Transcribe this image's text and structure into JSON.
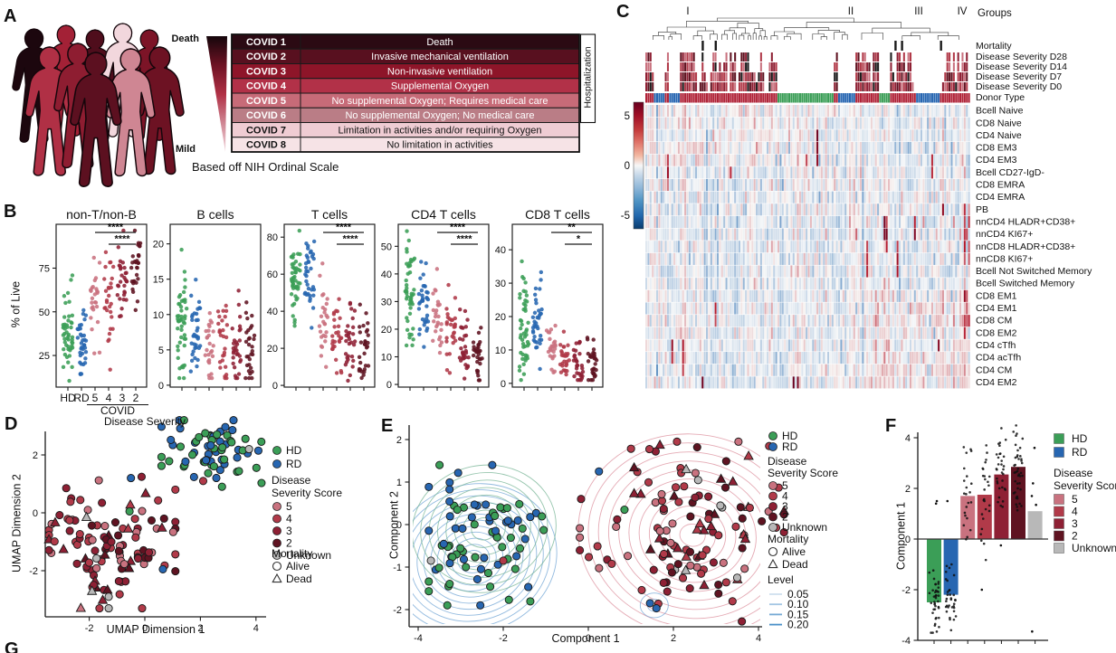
{
  "panels": {
    "A": "A",
    "B": "B",
    "C": "C",
    "D": "D",
    "E": "E",
    "F": "F",
    "G": "G"
  },
  "colors": {
    "hd": "#3b9e57",
    "rd": "#2766b1",
    "s5": "#c9727f",
    "s4": "#b13a49",
    "s3": "#8e2034",
    "s2": "#5f1321",
    "unknown": "#b8b8b8",
    "donor_covid": "#b02338",
    "black": "#1a1a1a",
    "heat_pos": "#b2182b",
    "heat_pos_dark": "#67001f",
    "heat_neg": "#2166ac",
    "heat_neg_dark": "#053061"
  },
  "panelA": {
    "death": "Death",
    "mild": "Mild",
    "hospitalization": "Hospitalization",
    "caption": "Based off NIH Ordinal Scale",
    "rows": [
      {
        "code": "COVID 1",
        "desc": "Death",
        "bg": "#2b0a13",
        "text": "#ffffff"
      },
      {
        "code": "COVID 2",
        "desc": "Invasive mechanical ventilation",
        "bg": "#58101f",
        "text": "#ffffff"
      },
      {
        "code": "COVID 3",
        "desc": "Non-invasive ventilation",
        "bg": "#8e1529",
        "text": "#ffffff"
      },
      {
        "code": "COVID 4",
        "desc": "Supplemental Oxygen",
        "bg": "#b23148",
        "text": "#ffffff"
      },
      {
        "code": "COVID 5",
        "desc": "No supplemental Oxygen; Requires medical care",
        "bg": "#c76b78",
        "text": "#ffffff"
      },
      {
        "code": "COVID 6",
        "desc": "No supplemental Oxygen; No medical care",
        "bg": "#ba7d86",
        "text": "#ffffff"
      },
      {
        "code": "COVID 7",
        "desc": "Limitation in activities and/or requiring Oxygen",
        "bg": "#efccd3",
        "text": "#111111"
      },
      {
        "code": "COVID 8",
        "desc": "No limitation in activities",
        "bg": "#f6e3e6",
        "text": "#111111"
      }
    ],
    "silhouette_colors": [
      "#1c070e",
      "#a32136",
      "#4f0d1c",
      "#f2d7dd",
      "#7c1427",
      "#6d1223",
      "#b03045",
      "#8e1d31",
      "#cf8693",
      "#5c1020"
    ],
    "wedge_gradient": [
      "#15060b",
      "#6d1223",
      "#b03045",
      "#cf8693",
      "#f2d7dd"
    ]
  },
  "legend": {
    "hd": "HD",
    "rd": "RD",
    "disease": "Disease",
    "severity_score": "Severity Score",
    "severity_items": [
      [
        "s5",
        "5"
      ],
      [
        "s4",
        "4"
      ],
      [
        "s3",
        "3"
      ],
      [
        "s2",
        "2"
      ],
      [
        "unknown",
        "Unknown"
      ]
    ],
    "mortality": "Mortality",
    "alive": "Alive",
    "dead": "Dead",
    "level": "Level",
    "levels": [
      "0.05",
      "0.10",
      "0.15",
      "0.20"
    ],
    "level_colors": [
      "#cfe0ef",
      "#a3c6e3",
      "#74a9d4",
      "#4a90c9"
    ]
  },
  "chart_data": {
    "B": {
      "type": "scatter-strip",
      "ylabel": "% of Live",
      "xlabel": "Disease Severity",
      "xgroup_label": "COVID",
      "categories": [
        "HD",
        "RD",
        "5",
        "4",
        "3",
        "2"
      ],
      "group_colors": [
        "hd",
        "rd",
        "s5",
        "s4",
        "s3",
        "s2"
      ],
      "plots": [
        {
          "title": "non-T/non-B",
          "yticks": [
            25,
            50,
            75
          ],
          "ydomain": [
            10,
            97
          ],
          "centers": [
            35,
            33,
            56,
            61,
            70,
            77
          ],
          "spreads": [
            13,
            12,
            13,
            14,
            12,
            10
          ],
          "counts": [
            48,
            36,
            26,
            28,
            30,
            30
          ],
          "sig": [
            {
              "i1": 2,
              "i2": 5,
              "stars": "****"
            },
            {
              "i1": 3,
              "i2": 5,
              "stars": "****"
            }
          ]
        },
        {
          "title": "B cells",
          "yticks": [
            0,
            5,
            10,
            15,
            20
          ],
          "ydomain": [
            0.5,
            22
          ],
          "centers": [
            7.6,
            7.2,
            5.2,
            8.0,
            5.0,
            5.2
          ],
          "spreads": [
            3.6,
            3.0,
            3.4,
            4.2,
            3.2,
            3.4
          ],
          "counts": [
            48,
            36,
            26,
            28,
            30,
            30
          ],
          "sig": []
        },
        {
          "title": "T cells",
          "yticks": [
            0,
            20,
            40,
            60,
            80
          ],
          "ydomain": [
            2,
            84
          ],
          "centers": [
            57,
            60,
            36,
            30,
            23,
            19
          ],
          "spreads": [
            11,
            11,
            13,
            12,
            10,
            9
          ],
          "counts": [
            48,
            36,
            26,
            28,
            30,
            30
          ],
          "sig": [
            {
              "i1": 2,
              "i2": 5,
              "stars": "****"
            },
            {
              "i1": 3,
              "i2": 5,
              "stars": "****"
            }
          ]
        },
        {
          "title": "CD4 T cells",
          "yticks": [
            0,
            10,
            20,
            30,
            40,
            50
          ],
          "ydomain": [
            1,
            56
          ],
          "centers": [
            33,
            32,
            24,
            18,
            12,
            10
          ],
          "spreads": [
            8,
            7.5,
            8,
            7,
            6,
            5.5
          ],
          "counts": [
            48,
            36,
            26,
            28,
            30,
            30
          ],
          "sig": [
            {
              "i1": 2,
              "i2": 5,
              "stars": "****"
            },
            {
              "i1": 3,
              "i2": 5,
              "stars": "****"
            }
          ]
        },
        {
          "title": "CD8 T cells",
          "yticks": [
            0,
            10,
            20,
            30,
            40
          ],
          "ydomain": [
            0.5,
            46
          ],
          "centers": [
            19,
            19,
            10.5,
            7.5,
            6.5,
            5.5
          ],
          "spreads": [
            7.5,
            7,
            5,
            4,
            3.5,
            3.5
          ],
          "counts": [
            48,
            36,
            26,
            28,
            30,
            30
          ],
          "sig": [
            {
              "i1": 2,
              "i2": 5,
              "stars": "**"
            },
            {
              "i1": 3,
              "i2": 5,
              "stars": "*"
            }
          ]
        }
      ]
    },
    "C": {
      "type": "heatmap",
      "groups_label": "Groups",
      "groups": [
        "I",
        "II",
        "III",
        "IV"
      ],
      "annotation_rows": [
        "Mortality",
        "Disease Severity D28",
        "Disease Severity D14",
        "Disease Severity D7",
        "Disease Severity D0",
        "Donor Type"
      ],
      "rows": [
        "Bcell Naive",
        "CD8 Naive",
        "CD4 Naive",
        "CD8 EM3",
        "CD4 EM3",
        "Bcell CD27-IgD-",
        "CD8 EMRA",
        "CD4 EMRA",
        "PB",
        "nnCD4 HLADR+CD38+",
        "nnCD4 KI67+",
        "nnCD8 HLADR+CD38+",
        "nnCD8 KI67+",
        "Bcell Not Switched Memory",
        "Bcell Switched Memory",
        "CD8 EM1",
        "CD4 EM1",
        "CD8 CM",
        "CD8 EM2",
        "CD4 cTfh",
        "CD4 acTfh",
        "CD4 CM",
        "CD4 EM2"
      ],
      "colorbar_ticks": [
        5,
        0,
        -5
      ],
      "value_domain": [
        -6.5,
        6.5
      ],
      "n_columns": 150
    },
    "D": {
      "type": "scatter",
      "xlabel": "UMAP Dimension 1",
      "ylabel": "UMAP Dimension 2",
      "xticks": [
        -2,
        0,
        2,
        4
      ],
      "yticks": [
        2,
        0,
        -2
      ],
      "clusters": [
        {
          "name": "healthy",
          "n": 66,
          "cx": 2.25,
          "cy": 2.05,
          "sx": 0.95,
          "sy": 0.6,
          "xclamp": [
            0.6,
            4.2
          ],
          "yclamp": [
            0.9,
            3.2
          ],
          "colors": {
            "hd": 0.58,
            "rd": 0.42
          },
          "tri_prob": 0
        },
        {
          "name": "covid",
          "n": 112,
          "cx": -1.15,
          "cy": -1.1,
          "sx": 1.15,
          "sy": 1.05,
          "xclamp": [
            -3.45,
            1.1
          ],
          "yclamp": [
            -3.3,
            1.3
          ],
          "colors": {
            "s5": 0.22,
            "s4": 0.3,
            "s3": 0.26,
            "s2": 0.18,
            "unknown": 0.04
          },
          "tri_prob": 0.2
        }
      ],
      "extras": [
        {
          "x": -0.55,
          "y": 0.05,
          "c": "hd"
        },
        {
          "x": 3.75,
          "y": 2.2,
          "c": "unknown"
        },
        {
          "x": 2.1,
          "y": 1.1,
          "c": "s4"
        },
        {
          "x": 0.65,
          "y": -1.95,
          "c": "rd"
        },
        {
          "x": -0.5,
          "y": 1.2,
          "c": "rd"
        },
        {
          "x": -1.3,
          "y": -2.9,
          "c": "unknown"
        },
        {
          "x": -2.1,
          "y": -0.15,
          "c": "unknown",
          "tri": true
        }
      ]
    },
    "E": {
      "type": "scatter-contour",
      "xlabel": "Component 1",
      "ylabel": "Component 2",
      "xticks": [
        -4,
        -2,
        0,
        2,
        4
      ],
      "yticks": [
        2,
        1,
        0,
        -1,
        -2
      ],
      "contour_levels": [
        0.05,
        0.1,
        0.15,
        0.2
      ],
      "clusters": [
        {
          "name": "healthy",
          "n": 78,
          "cx": -2.55,
          "cy": -0.35,
          "sx": 0.78,
          "sy": 0.75,
          "xclamp": [
            -3.75,
            -1.05
          ],
          "yclamp": [
            -1.9,
            1.4
          ],
          "colors": {
            "hd": 0.58,
            "rd": 0.42
          },
          "tri_prob": 0
        },
        {
          "name": "covid",
          "n": 122,
          "cx": 2.4,
          "cy": -0.1,
          "sx": 1.15,
          "sy": 1.0,
          "xclamp": [
            -0.2,
            4.6
          ],
          "yclamp": [
            -2.35,
            1.95
          ],
          "colors": {
            "s5": 0.2,
            "s4": 0.3,
            "s3": 0.27,
            "s2": 0.19,
            "unknown": 0.04
          },
          "tri_prob": 0.22
        }
      ],
      "extras": [
        {
          "x": 0.25,
          "y": 1.25,
          "c": "rd"
        },
        {
          "x": 0.85,
          "y": 0.35,
          "c": "hd"
        },
        {
          "x": 1.45,
          "y": -1.85,
          "c": "rd"
        },
        {
          "x": 1.6,
          "y": -1.97,
          "c": "rd"
        },
        {
          "x": 2.3,
          "y": 1.3,
          "c": "unknown",
          "tri": true
        },
        {
          "x": -3.7,
          "y": -0.85,
          "c": "unknown"
        },
        {
          "x": -2.0,
          "y": -0.85,
          "c": "s4"
        },
        {
          "x": 3.5,
          "y": -1.25,
          "c": "unknown"
        }
      ]
    },
    "F": {
      "type": "bar",
      "ylabel": "Component 1",
      "yticks": [
        -4,
        -2,
        0,
        2,
        4
      ],
      "categories": [
        "HD",
        "RD",
        "5",
        "4",
        "3",
        "2",
        "Unknown"
      ],
      "values": [
        -2.5,
        -2.2,
        1.7,
        1.75,
        2.55,
        2.85,
        1.1
      ],
      "bar_colors": [
        "hd",
        "rd",
        "s5",
        "s4",
        "s3",
        "s2",
        "unknown"
      ],
      "points": [
        {
          "n": 40,
          "mean": -2.4,
          "sd": 0.8,
          "clamp": [
            -3.7,
            -0.85
          ],
          "extras": [
            1.5,
            1.4
          ]
        },
        {
          "n": 34,
          "mean": -2.3,
          "sd": 0.75,
          "clamp": [
            -3.6,
            -1.0
          ],
          "extras": [
            1.5
          ]
        },
        {
          "n": 22,
          "mean": 1.7,
          "sd": 1.0,
          "clamp": [
            -0.4,
            3.85
          ],
          "extras": []
        },
        {
          "n": 26,
          "mean": 1.75,
          "sd": 1.1,
          "clamp": [
            -2.05,
            4.0
          ],
          "extras": [
            -2.0
          ]
        },
        {
          "n": 32,
          "mean": 2.5,
          "sd": 0.9,
          "clamp": [
            0.4,
            4.5
          ],
          "extras": [
            -0.25
          ]
        },
        {
          "n": 42,
          "mean": 2.85,
          "sd": 0.85,
          "clamp": [
            0.6,
            4.55
          ],
          "extras": []
        },
        {
          "n": 0,
          "mean": 0,
          "sd": 1,
          "clamp": [
            0,
            0
          ],
          "extras": [
            3.6,
            2.2,
            1.7,
            1.35,
            -3.65
          ]
        }
      ]
    }
  }
}
